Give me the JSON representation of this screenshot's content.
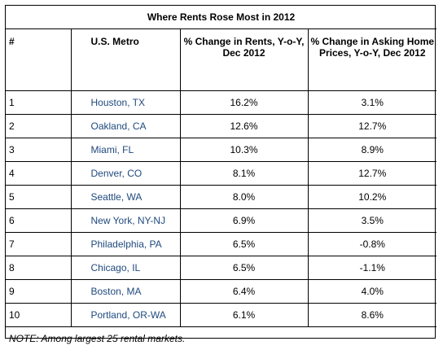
{
  "title": "Where Rents Rose Most in 2012",
  "headers": {
    "rank": "#",
    "metro": "U.S. Metro",
    "rents": "% Change in Rents, Y-o-Y, Dec 2012",
    "homes": "% Change in Asking Home Prices, Y-o-Y, Dec 2012"
  },
  "rows": [
    {
      "rank": "1",
      "metro": "Houston, TX",
      "rents": "16.2%",
      "homes": "3.1%"
    },
    {
      "rank": "2",
      "metro": "Oakland, CA",
      "rents": "12.6%",
      "homes": "12.7%"
    },
    {
      "rank": "3",
      "metro": "Miami, FL",
      "rents": "10.3%",
      "homes": "8.9%"
    },
    {
      "rank": "4",
      "metro": "Denver, CO",
      "rents": "8.1%",
      "homes": "12.7%"
    },
    {
      "rank": "5",
      "metro": "Seattle, WA",
      "rents": "8.0%",
      "homes": "10.2%"
    },
    {
      "rank": "6",
      "metro": "New York, NY-NJ",
      "rents": "6.9%",
      "homes": "3.5%"
    },
    {
      "rank": "7",
      "metro": "Philadelphia, PA",
      "rents": "6.5%",
      "homes": "-0.8%"
    },
    {
      "rank": "8",
      "metro": "Chicago, IL",
      "rents": "6.5%",
      "homes": "-1.1%"
    },
    {
      "rank": "9",
      "metro": "Boston, MA",
      "rents": "6.4%",
      "homes": "4.0%"
    },
    {
      "rank": "10",
      "metro": "Portland, OR-WA",
      "rents": "6.1%",
      "homes": "8.6%"
    }
  ],
  "note": "NOTE: Among largest 25 rental markets.",
  "colors": {
    "metro_text": "#1f497d",
    "border": "#000000"
  }
}
